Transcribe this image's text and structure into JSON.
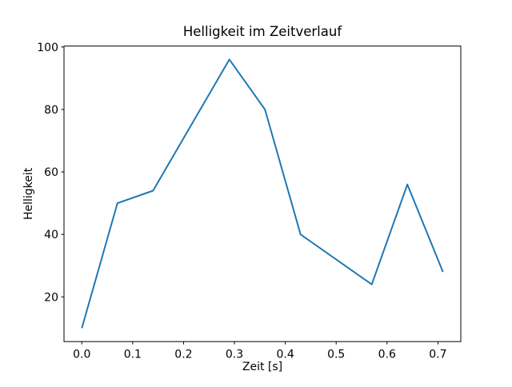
{
  "chart_data": {
    "type": "line",
    "title": "Helligkeit im Zeitverlauf",
    "xlabel": "Zeit [s]",
    "ylabel": "Helligkeit",
    "x": [
      0.0,
      0.07,
      0.14,
      0.29,
      0.36,
      0.43,
      0.57,
      0.64,
      0.71
    ],
    "y": [
      10,
      50,
      54,
      96,
      80,
      40,
      24,
      56,
      28
    ],
    "xticks": [
      0.0,
      0.1,
      0.2,
      0.3,
      0.4,
      0.5,
      0.6,
      0.7
    ],
    "xtick_labels": [
      "0.0",
      "0.1",
      "0.2",
      "0.3",
      "0.4",
      "0.5",
      "0.6",
      "0.7"
    ],
    "yticks": [
      20,
      40,
      60,
      80,
      100
    ],
    "ytick_labels": [
      "20",
      "40",
      "60",
      "80",
      "100"
    ],
    "xlim": [
      -0.035,
      0.745
    ],
    "ylim": [
      5.7,
      100.3
    ],
    "grid": false,
    "legend": null,
    "line_color": "#1f77b4",
    "spine_color": "#000000",
    "background_color": "#ffffff"
  }
}
